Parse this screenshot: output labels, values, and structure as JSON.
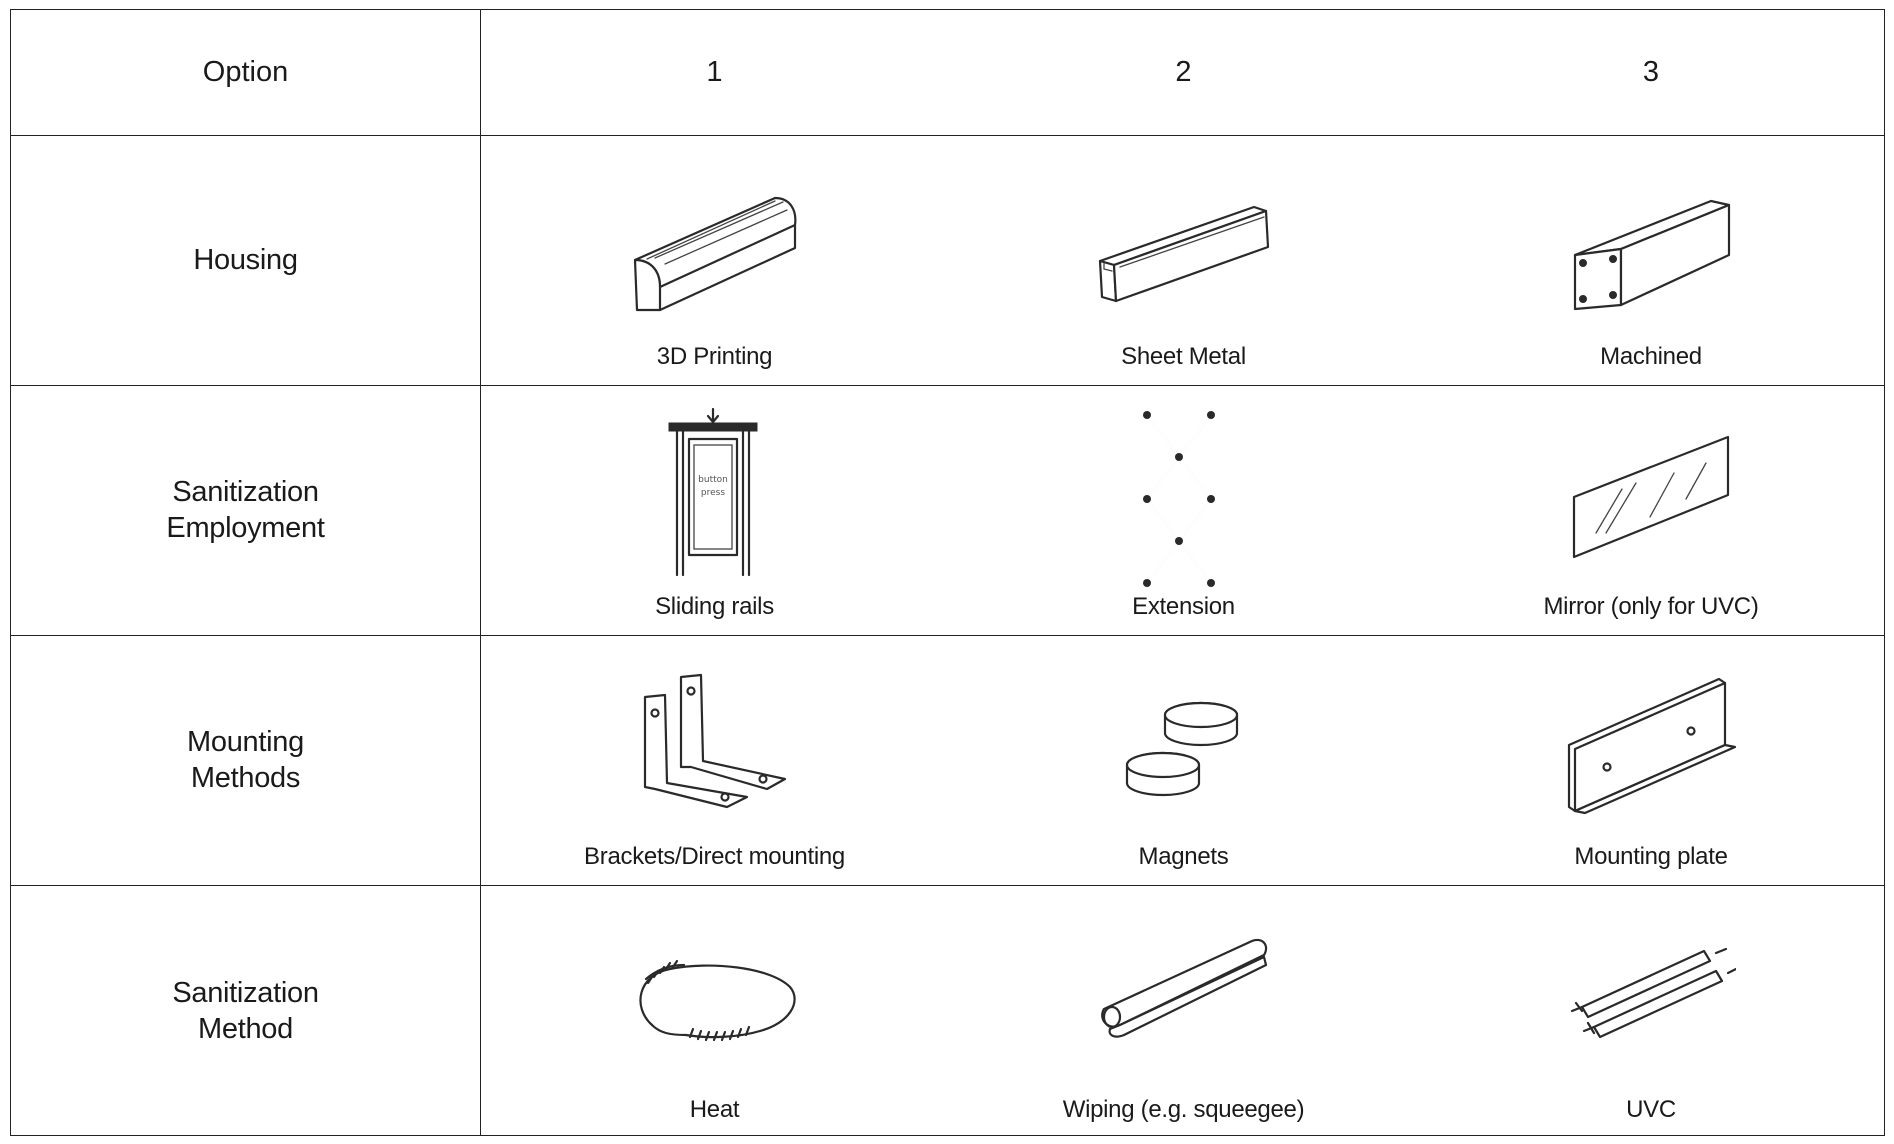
{
  "table": {
    "corner_label": "Option",
    "columns": [
      "1",
      "2",
      "3"
    ],
    "rows": [
      {
        "label_lines": [
          "Housing"
        ],
        "options": [
          {
            "caption": "3D Printing",
            "icon": "rounded-prism-housing-icon"
          },
          {
            "caption": "Sheet Metal",
            "icon": "sheet-metal-housing-icon"
          },
          {
            "caption": "Machined",
            "icon": "machined-box-housing-icon"
          }
        ]
      },
      {
        "label_lines": [
          "Sanitization",
          "Employment"
        ],
        "options": [
          {
            "caption": "Sliding rails",
            "icon": "sliding-rails-icon",
            "sketch_text": [
              "button",
              "press"
            ]
          },
          {
            "caption": "Extension",
            "icon": "scissor-extension-icon"
          },
          {
            "caption": "Mirror (only for UVC)",
            "icon": "mirror-icon"
          }
        ]
      },
      {
        "label_lines": [
          "Mounting",
          "Methods"
        ],
        "options": [
          {
            "caption": "Brackets/Direct mounting",
            "icon": "l-brackets-icon"
          },
          {
            "caption": "Magnets",
            "icon": "magnets-icon"
          },
          {
            "caption": "Mounting plate",
            "icon": "mounting-plate-icon"
          }
        ]
      },
      {
        "label_lines": [
          "Sanitization",
          "Method"
        ],
        "options": [
          {
            "caption": "Heat",
            "icon": "heating-coil-icon"
          },
          {
            "caption": "Wiping (e.g. squeegee)",
            "icon": "squeegee-icon"
          },
          {
            "caption": "UVC",
            "icon": "uvc-tubes-icon"
          }
        ]
      }
    ]
  }
}
